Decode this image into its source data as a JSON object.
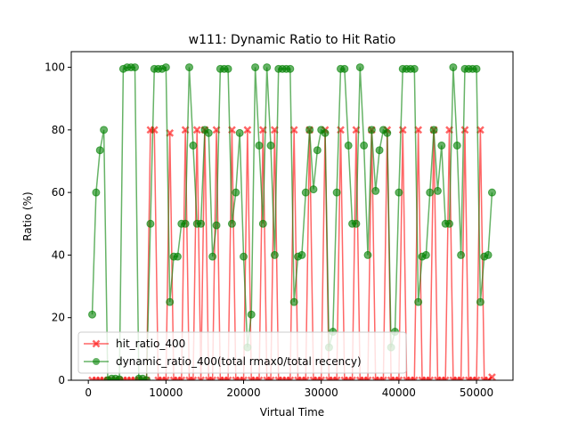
{
  "chart_data": {
    "type": "line",
    "title": "w111: Dynamic Ratio to Hit Ratio",
    "x_label": "Virtual Time",
    "y_label": "Ratio (%)",
    "xlim": [
      -2200,
      54700
    ],
    "ylim": [
      0,
      105
    ],
    "xticks": [
      0,
      10000,
      20000,
      30000,
      40000,
      50000
    ],
    "yticks": [
      0,
      20,
      40,
      60,
      80,
      100
    ],
    "legend": "lower left",
    "x": [
      500,
      1000,
      1500,
      2000,
      2500,
      3000,
      3500,
      4000,
      4500,
      5000,
      5500,
      6000,
      6500,
      7000,
      7500,
      8000,
      8500,
      9000,
      9500,
      10000,
      10500,
      11000,
      11500,
      12000,
      12500,
      13000,
      13500,
      14000,
      14500,
      15000,
      15500,
      16000,
      16500,
      17000,
      17500,
      18000,
      18500,
      19000,
      19500,
      20000,
      20500,
      21000,
      21500,
      22000,
      22500,
      23000,
      23500,
      24000,
      24500,
      25000,
      25500,
      26000,
      26500,
      27000,
      27500,
      28000,
      28500,
      29000,
      29500,
      30000,
      30500,
      31000,
      31500,
      32000,
      32500,
      33000,
      33500,
      34000,
      34500,
      35000,
      35500,
      36000,
      36500,
      37000,
      37500,
      38000,
      38500,
      39000,
      39500,
      40000,
      40500,
      41000,
      41500,
      42000,
      42500,
      43000,
      43500,
      44000,
      44500,
      45000,
      45500,
      46000,
      46500,
      47000,
      47500,
      48000,
      48500,
      49000,
      49500,
      50000,
      50500,
      51000,
      51500,
      52000
    ],
    "series": [
      {
        "name": "hit_ratio_400",
        "color": "#ff0000",
        "marker": "X",
        "values": [
          0,
          0,
          0,
          0,
          0,
          0,
          0,
          0,
          0,
          0,
          0,
          0,
          0,
          0,
          0,
          80,
          80,
          0,
          0,
          0,
          79,
          0,
          0,
          0,
          80,
          0,
          0,
          80,
          0,
          80,
          0,
          0,
          80,
          0,
          0,
          0,
          80,
          0,
          0,
          0,
          80,
          0,
          0,
          0,
          80,
          0,
          0,
          80,
          0,
          0,
          0,
          0,
          80,
          0,
          0,
          0,
          80,
          0,
          0,
          0,
          80,
          0,
          0,
          0,
          80,
          0,
          0,
          0,
          80,
          0,
          0,
          0,
          80,
          0,
          0,
          0,
          80,
          0,
          0,
          0,
          80,
          0,
          0,
          0,
          80,
          0,
          0,
          0,
          80,
          0,
          0,
          0,
          80,
          0,
          0,
          0,
          80,
          0,
          0,
          0,
          80,
          0,
          0,
          1
        ]
      },
      {
        "name": "dynamic_ratio_400(total rmax0/total recency)",
        "color": "#008000",
        "marker": "o",
        "values": [
          21,
          60,
          73.5,
          80,
          0,
          0.5,
          0.5,
          0.3,
          99.5,
          100,
          100,
          100,
          0.5,
          0.5,
          0,
          50,
          99.5,
          99.5,
          99.5,
          100,
          25,
          39.5,
          39.5,
          50,
          50,
          100,
          75,
          50,
          50,
          80,
          79,
          39.5,
          49.5,
          99.5,
          99.5,
          99.5,
          50,
          60,
          79,
          39.5,
          10.5,
          21,
          100,
          75,
          50,
          100,
          75,
          40,
          99.5,
          99.5,
          99.5,
          99.5,
          25,
          39.5,
          40,
          60,
          80,
          61,
          73.5,
          80,
          79,
          10.5,
          15.5,
          60,
          99.5,
          99.5,
          75,
          50,
          50,
          100,
          75,
          40,
          80,
          60.5,
          73.5,
          80,
          79,
          10.5,
          15.5,
          60,
          99.5,
          99.5,
          99.5,
          99.5,
          25,
          39.5,
          40,
          60,
          80,
          60.5,
          75,
          50,
          50,
          100,
          75,
          40,
          99.5,
          99.5,
          99.5,
          99.5,
          25,
          39.5,
          40,
          60
        ]
      }
    ]
  }
}
